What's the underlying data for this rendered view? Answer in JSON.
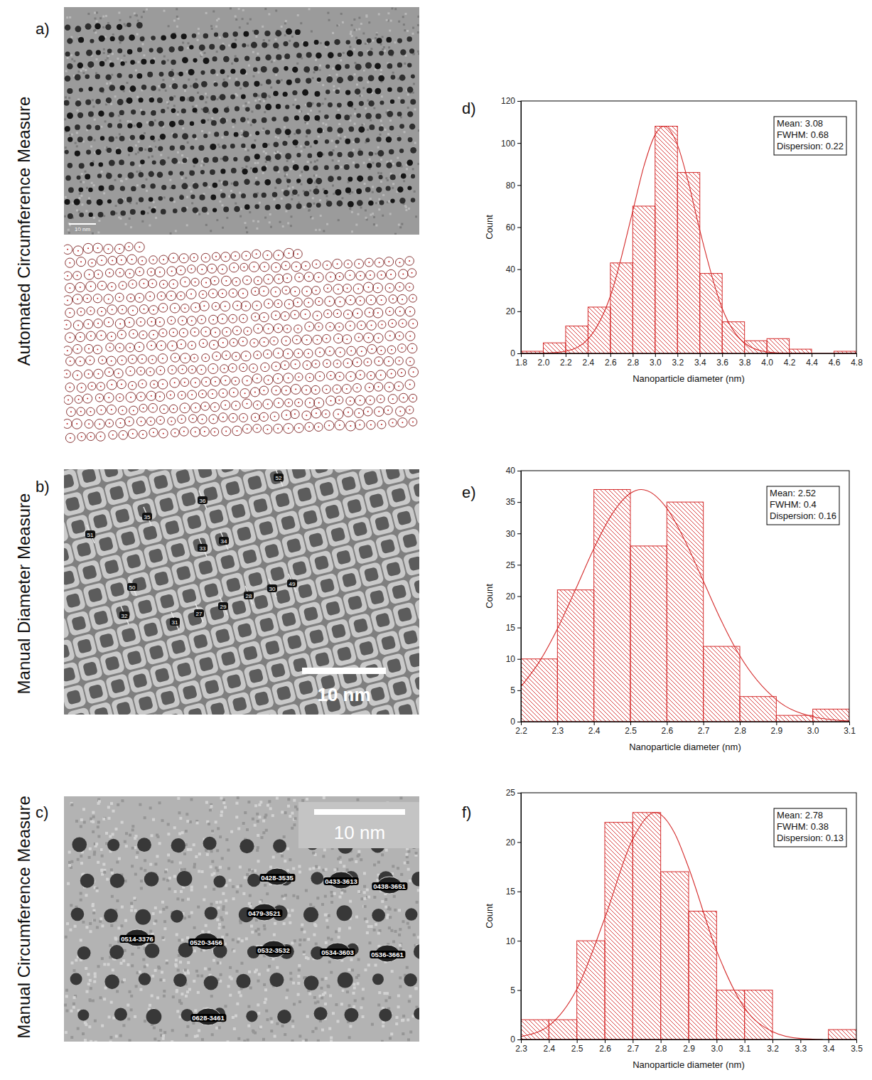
{
  "figure": {
    "row_labels": [
      "Automated Circumference Measure",
      "Manual Diameter Measure",
      "Manual Circumference Measure"
    ],
    "panels": [
      {
        "label": "a)",
        "scale_bar": "10 nm"
      },
      {
        "label": "b)",
        "scale_bar": "10 nm",
        "particle_labels": [
          "52",
          "36",
          "35",
          "51",
          "33",
          "34",
          "50",
          "30",
          "49",
          "28",
          "29",
          "27",
          "31",
          "32"
        ]
      },
      {
        "label": "c)",
        "scale_bar": "10 nm",
        "particle_labels": [
          "0428-3535",
          "0433-3613",
          "0438-3651",
          "0479-3521",
          "0514-3376",
          "0520-3456",
          "0532-3532",
          "0534-3603",
          "0536-3661",
          "0628-3461"
        ]
      }
    ]
  },
  "chart_data": [
    {
      "type": "histogram",
      "panel_label": "d)",
      "x_label": "Nanoparticle diameter (nm)",
      "y_label": "Count",
      "color": "#d42a2a",
      "bins": [
        1.8,
        2.0,
        2.2,
        2.4,
        2.6,
        2.8,
        3.0,
        3.2,
        3.4,
        3.6,
        3.8,
        4.0,
        4.2,
        4.4,
        4.6,
        4.8
      ],
      "values": [
        1,
        5,
        13,
        22,
        43,
        70,
        108,
        86,
        38,
        15,
        6,
        7,
        2,
        0,
        1
      ],
      "fit": {
        "type": "line",
        "x": [
          1.8,
          2.0,
          2.2,
          2.4,
          2.6,
          2.8,
          2.9,
          3.0,
          3.08,
          3.2,
          3.3,
          3.4,
          3.6,
          3.8,
          4.0,
          4.2,
          4.4,
          4.6,
          4.8
        ],
        "values": [
          0,
          0.1,
          1.0,
          6.8,
          27.2,
          67.6,
          89,
          103.9,
          108,
          99.1,
          80.8,
          58.5,
          21.4,
          4.9,
          0.7,
          0.05,
          0,
          0,
          0
        ]
      },
      "annotations": [
        "Mean: 3.08",
        "FWHM: 0.68",
        "Dispersion: 0.22"
      ],
      "xlim": [
        1.8,
        4.8
      ],
      "xticks": [
        1.8,
        {
          "value": 2,
          "label": "2.0"
        },
        2.2,
        2.4,
        2.6,
        2.8,
        {
          "value": 3,
          "label": "3.0"
        },
        3.2,
        3.4,
        3.6,
        3.8,
        {
          "value": 4,
          "label": "4.0"
        },
        4.2,
        4.4,
        4.6,
        4.8
      ],
      "ylim": [
        0,
        120
      ],
      "yticks": [
        0,
        20,
        40,
        60,
        80,
        100,
        120
      ],
      "grid": false
    },
    {
      "type": "histogram",
      "panel_label": "e)",
      "x_label": "Nanoparticle diameter (nm)",
      "y_label": "Count",
      "color": "#d42a2a",
      "bins": [
        2.2,
        2.3,
        2.4,
        2.5,
        2.6,
        2.7,
        2.8,
        2.9,
        3.0,
        3.1
      ],
      "values": [
        10,
        21,
        37,
        28,
        35,
        12,
        4,
        1,
        2
      ],
      "fit": {
        "type": "line",
        "x": [
          2.2,
          2.25,
          2.3,
          2.35,
          2.4,
          2.45,
          2.5,
          2.53,
          2.6,
          2.65,
          2.7,
          2.75,
          2.8,
          2.9,
          3.0,
          3.1
        ],
        "values": [
          5.6,
          9.5,
          14.8,
          21.1,
          27.6,
          33.1,
          36.4,
          37,
          34.0,
          28.8,
          22.4,
          16.0,
          10.5,
          3.5,
          0.8,
          0.1
        ]
      },
      "annotations": [
        "Mean: 2.52",
        "FWHM: 0.4",
        "Dispersion: 0.16"
      ],
      "xlim": [
        2.2,
        3.1
      ],
      "xticks": [
        2.2,
        2.3,
        2.4,
        2.5,
        2.6,
        2.7,
        2.8,
        2.9,
        {
          "value": 3,
          "label": "3.0"
        },
        3.1
      ],
      "ylim": [
        0,
        40
      ],
      "yticks": [
        0,
        5,
        10,
        15,
        20,
        25,
        30,
        35,
        40
      ],
      "grid": false
    },
    {
      "type": "histogram",
      "panel_label": "f)",
      "x_label": "Nanoparticle diameter (nm)",
      "y_label": "Count",
      "color": "#d42a2a",
      "bins": [
        2.3,
        2.4,
        2.5,
        2.6,
        2.7,
        2.8,
        2.9,
        3.0,
        3.1,
        3.2,
        3.3,
        3.4,
        3.5
      ],
      "values": [
        2,
        2,
        10,
        22,
        23,
        17,
        13,
        5,
        5,
        0,
        0,
        1
      ],
      "fit": {
        "type": "line",
        "x": [
          2.3,
          2.4,
          2.5,
          2.6,
          2.7,
          2.78,
          2.85,
          2.9,
          3.0,
          3.1,
          3.2,
          3.3,
          3.38
        ],
        "values": [
          0.3,
          1.4,
          5.1,
          12.3,
          20.3,
          23,
          20.9,
          17.4,
          9.0,
          3.2,
          0.8,
          0.1,
          0
        ]
      },
      "annotations": [
        "Mean: 2.78",
        "FWHM: 0.38",
        "Dispersion: 0.13"
      ],
      "xlim": [
        2.3,
        3.5
      ],
      "xticks": [
        2.3,
        2.4,
        2.5,
        2.6,
        2.7,
        2.8,
        2.9,
        {
          "value": 3,
          "label": "3.0"
        },
        3.1,
        3.2,
        3.3,
        3.4,
        3.5
      ],
      "ylim": [
        0,
        25
      ],
      "yticks": [
        0,
        5,
        10,
        15,
        20,
        25
      ],
      "grid": false
    }
  ]
}
